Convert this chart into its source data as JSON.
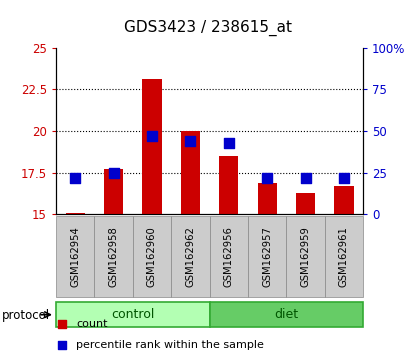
{
  "title": "GDS3423 / 238615_at",
  "samples": [
    "GSM162954",
    "GSM162958",
    "GSM162960",
    "GSM162962",
    "GSM162956",
    "GSM162957",
    "GSM162959",
    "GSM162961"
  ],
  "count_values": [
    15.1,
    17.7,
    23.1,
    20.0,
    18.5,
    16.9,
    16.3,
    16.7
  ],
  "percentile_values": [
    22,
    25,
    47,
    44,
    43,
    22,
    22,
    22
  ],
  "groups": [
    {
      "label": "control",
      "indices": [
        0,
        1,
        2,
        3
      ],
      "color": "#b3ffb3"
    },
    {
      "label": "diet",
      "indices": [
        4,
        5,
        6,
        7
      ],
      "color": "#66cc66"
    }
  ],
  "bar_bottom": 15.0,
  "ylim_left": [
    15,
    25
  ],
  "ylim_right": [
    0,
    100
  ],
  "yticks_left": [
    15,
    17.5,
    20,
    22.5,
    25
  ],
  "yticks_right": [
    0,
    25,
    50,
    75,
    100
  ],
  "ytick_labels_left": [
    "15",
    "17.5",
    "20",
    "22.5",
    "25"
  ],
  "ytick_labels_right": [
    "0",
    "25",
    "50",
    "75",
    "100%"
  ],
  "bar_color": "#cc0000",
  "dot_color": "#0000cc",
  "bar_width": 0.5,
  "dot_size": 55,
  "bg_color": "#ffffff",
  "plot_bg": "#ffffff",
  "left_tick_color": "#cc0000",
  "right_tick_color": "#0000cc",
  "legend_count_color": "#cc0000",
  "legend_pct_color": "#0000cc",
  "protocol_label": "protocol",
  "legend_count_label": "count",
  "legend_pct_label": "percentile rank within the sample",
  "title_fontsize": 11,
  "tick_fontsize": 8.5,
  "label_fontsize": 8.5,
  "group_divider": 4
}
